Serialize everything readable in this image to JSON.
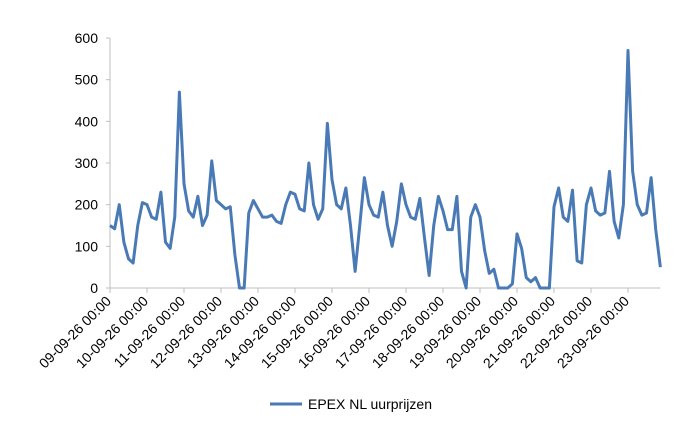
{
  "chart_data": {
    "type": "line",
    "categories": [
      "09-09-26 00:00",
      null,
      null,
      null,
      null,
      null,
      null,
      null,
      "10-09-26 00:00",
      null,
      null,
      null,
      null,
      null,
      null,
      null,
      "11-09-26 00:00",
      null,
      null,
      null,
      null,
      null,
      null,
      null,
      "12-09-26 00:00",
      null,
      null,
      null,
      null,
      null,
      null,
      null,
      "13-09-26 00:00",
      null,
      null,
      null,
      null,
      null,
      null,
      null,
      "14-09-26 00:00",
      null,
      null,
      null,
      null,
      null,
      null,
      null,
      "15-09-26 00:00",
      null,
      null,
      null,
      null,
      null,
      null,
      null,
      "16-09-26 00:00",
      null,
      null,
      null,
      null,
      null,
      null,
      null,
      "17-09-26 00:00",
      null,
      null,
      null,
      null,
      null,
      null,
      null,
      "18-09-26 00:00",
      null,
      null,
      null,
      null,
      null,
      null,
      null,
      "19-09-26 00:00",
      null,
      null,
      null,
      null,
      null,
      null,
      null,
      "20-09-26 00:00",
      null,
      null,
      null,
      null,
      null,
      null,
      null,
      "21-09-26 00:00",
      null,
      null,
      null,
      null,
      null,
      null,
      null,
      "22-09-26 00:00",
      null,
      null,
      null,
      null,
      null,
      null,
      null,
      "23-09-26 00:00",
      null,
      null,
      null,
      null,
      null,
      null,
      null
    ],
    "series": [
      {
        "name": "EPEX NL uurprijzen",
        "color": "#4a7ab5",
        "values": [
          150,
          142,
          200,
          110,
          70,
          60,
          150,
          205,
          200,
          170,
          165,
          230,
          110,
          95,
          170,
          470,
          250,
          185,
          170,
          220,
          150,
          175,
          305,
          210,
          200,
          190,
          195,
          80,
          0,
          0,
          180,
          210,
          190,
          170,
          170,
          175,
          160,
          155,
          200,
          230,
          225,
          190,
          185,
          300,
          200,
          165,
          190,
          395,
          260,
          200,
          190,
          240,
          150,
          40,
          150,
          265,
          200,
          175,
          170,
          230,
          150,
          100,
          160,
          250,
          200,
          170,
          165,
          215,
          120,
          30,
          150,
          220,
          185,
          140,
          140,
          220,
          40,
          0,
          170,
          200,
          170,
          90,
          35,
          45,
          0,
          0,
          0,
          10,
          130,
          95,
          25,
          15,
          25,
          0,
          0,
          0,
          195,
          240,
          170,
          160,
          235,
          65,
          60,
          200,
          240,
          185,
          175,
          180,
          280,
          160,
          120,
          200,
          570,
          280,
          200,
          175,
          180,
          265,
          140,
          50
        ]
      }
    ],
    "ylim": [
      0,
      600
    ],
    "yticks": [
      0,
      100,
      200,
      300,
      400,
      500,
      600
    ],
    "grid": false,
    "legend": "bottom"
  }
}
